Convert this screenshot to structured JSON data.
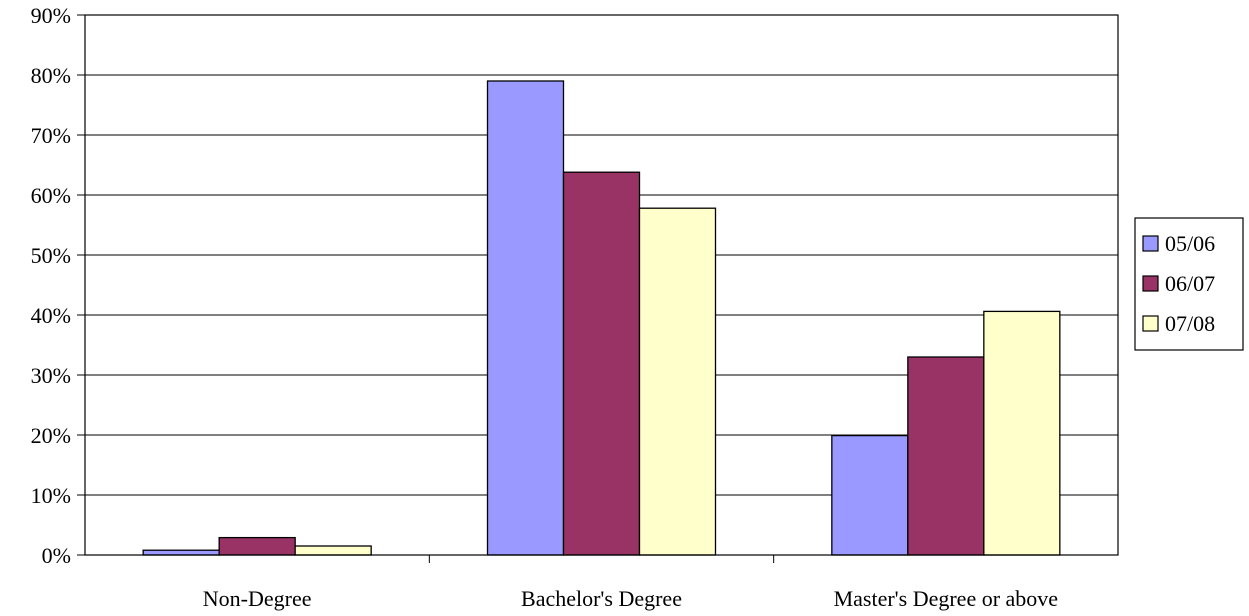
{
  "chart_data": {
    "type": "bar",
    "title": "",
    "xlabel": "",
    "ylabel": "",
    "categories": [
      "Non-Degree",
      "Bachelor's Degree",
      "Master's Degree or above"
    ],
    "series": [
      {
        "name": "05/06",
        "values": [
          0.8,
          79.0,
          19.9
        ],
        "color": "#9999FF"
      },
      {
        "name": "06/07",
        "values": [
          2.9,
          63.8,
          33.0
        ],
        "color": "#993366"
      },
      {
        "name": "07/08",
        "values": [
          1.5,
          57.8,
          40.6
        ],
        "color": "#FFFFCC"
      }
    ],
    "ylim": [
      0,
      90
    ],
    "yticks": [
      0,
      10,
      20,
      30,
      40,
      50,
      60,
      70,
      80,
      90
    ],
    "ytick_labels": [
      "0%",
      "10%",
      "20%",
      "30%",
      "40%",
      "50%",
      "60%",
      "70%",
      "80%",
      "90%"
    ],
    "grid": true,
    "legend_position": "right"
  }
}
